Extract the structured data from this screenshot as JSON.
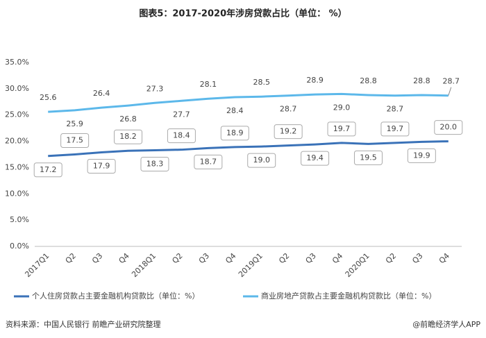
{
  "chart_data": {
    "type": "line",
    "title": "图表5：2017-2020年涉房贷款占比（单位： %）",
    "categories": [
      "2017Q1",
      "Q2",
      "Q3",
      "Q4",
      "2018Q1",
      "Q2",
      "Q3",
      "Q4",
      "2019Q1",
      "Q2",
      "Q3",
      "Q4",
      "2020Q1",
      "Q2",
      "Q3",
      "Q4"
    ],
    "series": [
      {
        "name": "个人住房贷款占主要金融机构贷款比（单位：%）",
        "color": "#3a72b8",
        "values": [
          17.2,
          17.5,
          17.9,
          18.2,
          18.3,
          18.4,
          18.7,
          18.9,
          19.0,
          19.2,
          19.4,
          19.7,
          19.5,
          19.7,
          19.9,
          20.0
        ],
        "value_labels": [
          "17.2",
          "17.5",
          "17.9",
          "18.2",
          "18.3",
          "18.4",
          "18.7",
          "18.9",
          "19.0",
          "19.2",
          "19.4",
          "19.7",
          "19.5",
          "19.7",
          "19.9",
          "20.0"
        ]
      },
      {
        "name": "商业房地产贷款占主要金融机构贷款比（单位：%）",
        "color": "#5cb8ea",
        "values": [
          25.6,
          25.9,
          26.4,
          26.8,
          27.3,
          27.7,
          28.1,
          28.4,
          28.5,
          28.7,
          28.9,
          29.0,
          28.8,
          28.7,
          28.8,
          28.7
        ],
        "value_labels": [
          "25.6",
          "25.9",
          "26.4",
          "26.8",
          "27.3",
          "27.7",
          "28.1",
          "28.4",
          "28.5",
          "28.7",
          "28.9",
          "29.0",
          "28.8",
          "28.7",
          "28.8",
          "28.7"
        ]
      }
    ],
    "ylim": [
      0,
      35
    ],
    "yticks": [
      {
        "value": 0,
        "label": "0.0%"
      },
      {
        "value": 5,
        "label": "5.0%"
      },
      {
        "value": 10,
        "label": "10.0%"
      },
      {
        "value": 15,
        "label": "15.0%"
      },
      {
        "value": 20,
        "label": "20.0%"
      },
      {
        "value": 25,
        "label": "25.0%"
      },
      {
        "value": 30,
        "label": "30.0%"
      },
      {
        "value": 35,
        "label": "35.0%"
      }
    ],
    "grid": false,
    "source": "资料来源：中国人民银行 前瞻产业研究院整理",
    "brand": "@前瞻经济学人APP"
  }
}
